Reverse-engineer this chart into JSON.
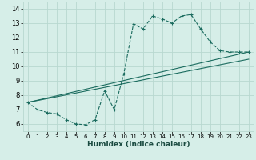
{
  "xlabel": "Humidex (Indice chaleur)",
  "bg_color": "#d6eee8",
  "grid_color": "#b8d8d0",
  "line_color": "#1a6b5e",
  "xlim": [
    -0.5,
    23.5
  ],
  "ylim": [
    5.5,
    14.5
  ],
  "xticks": [
    0,
    1,
    2,
    3,
    4,
    5,
    6,
    7,
    8,
    9,
    10,
    11,
    12,
    13,
    14,
    15,
    16,
    17,
    18,
    19,
    20,
    21,
    22,
    23
  ],
  "yticks": [
    6,
    7,
    8,
    9,
    10,
    11,
    12,
    13,
    14
  ],
  "series": [
    {
      "x": [
        0,
        1,
        2,
        3,
        4,
        5,
        6,
        7,
        8,
        9,
        10,
        11,
        12,
        13,
        14,
        15,
        16,
        17,
        18,
        19,
        20,
        21,
        22,
        23
      ],
      "y": [
        7.5,
        7.0,
        6.8,
        6.7,
        6.3,
        6.0,
        5.95,
        6.3,
        8.3,
        7.0,
        9.5,
        12.95,
        12.6,
        13.5,
        13.3,
        13.0,
        13.5,
        13.6,
        12.6,
        11.7,
        11.1,
        11.0,
        11.0,
        11.0
      ],
      "style": "dashed_marker"
    },
    {
      "x": [
        0,
        23
      ],
      "y": [
        7.5,
        11.0
      ],
      "style": "solid"
    },
    {
      "x": [
        0,
        23
      ],
      "y": [
        7.5,
        10.5
      ],
      "style": "solid"
    }
  ]
}
